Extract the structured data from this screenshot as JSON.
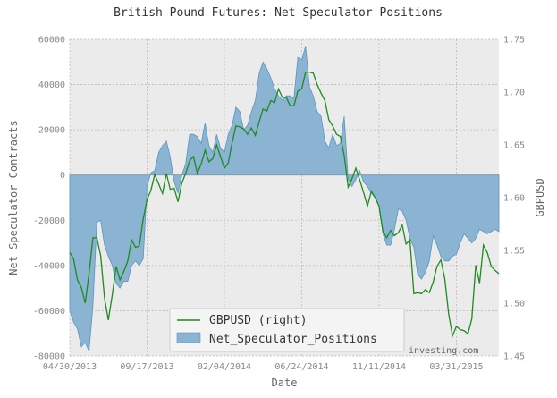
{
  "chart_data": {
    "type": "area",
    "title": "British Pound Futures: Net Speculator Positions",
    "xlabel": "Date",
    "ylabel": "Net Speculator Contracts",
    "ylabel_right": "GBPUSD",
    "x_tick_labels": [
      "04/30/2013",
      "09/17/2013",
      "02/04/2014",
      "06/24/2014",
      "11/11/2014",
      "03/31/2015"
    ],
    "x_tick_dates": [
      "2013-04-30",
      "2013-09-17",
      "2014-02-04",
      "2014-06-24",
      "2014-11-11",
      "2015-03-31"
    ],
    "x_range": [
      "2013-04-30",
      "2015-06-16"
    ],
    "ylim": [
      -80000,
      60000
    ],
    "y_ticks": [
      -80000,
      -60000,
      -40000,
      -20000,
      0,
      20000,
      40000,
      60000
    ],
    "ylim_right": [
      1.45,
      1.75
    ],
    "y_ticks_right": [
      1.45,
      1.5,
      1.55,
      1.6,
      1.65,
      1.7,
      1.75
    ],
    "grid": true,
    "legend_position": "bottom-center",
    "watermark": "investing.com",
    "colors": {
      "area": "#8ab4d1",
      "area_edge": "#5b95bf",
      "line": "#1f8a1f",
      "plot_bg": "#ebebeb",
      "grid": "#bbbbbb"
    },
    "series": [
      {
        "name": "Net_Speculator_Positions",
        "axis": "left",
        "kind": "area",
        "x": [
          "2013-04-30",
          "2013-05-07",
          "2013-05-14",
          "2013-05-21",
          "2013-05-28",
          "2013-06-04",
          "2013-06-11",
          "2013-06-18",
          "2013-06-25",
          "2013-07-02",
          "2013-07-09",
          "2013-07-16",
          "2013-07-23",
          "2013-07-30",
          "2013-08-06",
          "2013-08-13",
          "2013-08-20",
          "2013-08-27",
          "2013-09-03",
          "2013-09-10",
          "2013-09-17",
          "2013-09-24",
          "2013-10-01",
          "2013-10-08",
          "2013-10-15",
          "2013-10-22",
          "2013-10-29",
          "2013-11-05",
          "2013-11-12",
          "2013-11-19",
          "2013-11-26",
          "2013-12-03",
          "2013-12-10",
          "2013-12-17",
          "2013-12-24",
          "2013-12-31",
          "2014-01-07",
          "2014-01-14",
          "2014-01-21",
          "2014-01-28",
          "2014-02-04",
          "2014-02-11",
          "2014-02-18",
          "2014-02-25",
          "2014-03-04",
          "2014-03-11",
          "2014-03-18",
          "2014-03-25",
          "2014-04-01",
          "2014-04-08",
          "2014-04-15",
          "2014-04-22",
          "2014-04-29",
          "2014-05-06",
          "2014-05-13",
          "2014-05-20",
          "2014-05-27",
          "2014-06-03",
          "2014-06-10",
          "2014-06-17",
          "2014-06-24",
          "2014-07-01",
          "2014-07-08",
          "2014-07-15",
          "2014-07-22",
          "2014-07-29",
          "2014-08-05",
          "2014-08-12",
          "2014-08-19",
          "2014-08-26",
          "2014-09-02",
          "2014-09-09",
          "2014-09-16",
          "2014-09-23",
          "2014-09-30",
          "2014-10-07",
          "2014-10-14",
          "2014-10-21",
          "2014-10-28",
          "2014-11-04",
          "2014-11-11",
          "2014-11-18",
          "2014-11-25",
          "2014-12-02",
          "2014-12-09",
          "2014-12-16",
          "2014-12-23",
          "2014-12-30",
          "2015-01-06",
          "2015-01-13",
          "2015-01-20",
          "2015-01-27",
          "2015-02-03",
          "2015-02-10",
          "2015-02-17",
          "2015-02-24",
          "2015-03-03",
          "2015-03-10",
          "2015-03-17",
          "2015-03-24",
          "2015-03-31",
          "2015-04-07",
          "2015-04-14",
          "2015-04-21",
          "2015-04-28",
          "2015-05-05",
          "2015-05-12",
          "2015-05-19",
          "2015-05-26",
          "2015-06-02",
          "2015-06-09",
          "2015-06-16"
        ],
        "values": [
          -60000,
          -65000,
          -68000,
          -76000,
          -74000,
          -78000,
          -58000,
          -21000,
          -20000,
          -31000,
          -36000,
          -40000,
          -48000,
          -50000,
          -47000,
          -47000,
          -40000,
          -38000,
          -40000,
          -37000,
          -5000,
          1000,
          2000,
          10000,
          13000,
          15000,
          8000,
          -3000,
          -8000,
          0,
          5000,
          18000,
          18000,
          17000,
          14000,
          23000,
          13000,
          10000,
          18000,
          12000,
          10000,
          18000,
          22000,
          30000,
          28000,
          20000,
          22000,
          28000,
          33000,
          45000,
          50000,
          47000,
          43000,
          38000,
          35000,
          33000,
          35000,
          35000,
          34000,
          52000,
          51000,
          57000,
          39000,
          35000,
          28000,
          26000,
          15000,
          12000,
          18000,
          13000,
          14000,
          26000,
          -2000,
          -5000,
          -2000,
          2000,
          -3000,
          -5000,
          -8000,
          -10000,
          -14000,
          -26000,
          -31000,
          -31000,
          -24000,
          -15000,
          -16000,
          -20000,
          -28000,
          -32000,
          -44000,
          -46000,
          -43000,
          -38000,
          -27000,
          -31000,
          -36000,
          -38000,
          -38000,
          -36000,
          -35000,
          -30000,
          -26000,
          -28000,
          -30000,
          -28000,
          -24000,
          -25000,
          -26000,
          -25000,
          -24000,
          -25000
        ]
      },
      {
        "name": "GBPUSD (right)",
        "axis": "right",
        "kind": "line",
        "x": [
          "2013-04-30",
          "2013-05-07",
          "2013-05-14",
          "2013-05-21",
          "2013-05-28",
          "2013-06-04",
          "2013-06-11",
          "2013-06-18",
          "2013-06-25",
          "2013-07-02",
          "2013-07-09",
          "2013-07-16",
          "2013-07-23",
          "2013-07-30",
          "2013-08-06",
          "2013-08-13",
          "2013-08-20",
          "2013-08-27",
          "2013-09-03",
          "2013-09-10",
          "2013-09-17",
          "2013-09-24",
          "2013-10-01",
          "2013-10-08",
          "2013-10-15",
          "2013-10-22",
          "2013-10-29",
          "2013-11-05",
          "2013-11-12",
          "2013-11-19",
          "2013-11-26",
          "2013-12-03",
          "2013-12-10",
          "2013-12-17",
          "2013-12-24",
          "2013-12-31",
          "2014-01-07",
          "2014-01-14",
          "2014-01-21",
          "2014-01-28",
          "2014-02-04",
          "2014-02-11",
          "2014-02-18",
          "2014-02-25",
          "2014-03-04",
          "2014-03-11",
          "2014-03-18",
          "2014-03-25",
          "2014-04-01",
          "2014-04-08",
          "2014-04-15",
          "2014-04-22",
          "2014-04-29",
          "2014-05-06",
          "2014-05-13",
          "2014-05-20",
          "2014-05-27",
          "2014-06-03",
          "2014-06-10",
          "2014-06-17",
          "2014-06-24",
          "2014-07-01",
          "2014-07-08",
          "2014-07-15",
          "2014-07-22",
          "2014-07-29",
          "2014-08-05",
          "2014-08-12",
          "2014-08-19",
          "2014-08-26",
          "2014-09-02",
          "2014-09-09",
          "2014-09-16",
          "2014-09-23",
          "2014-09-30",
          "2014-10-07",
          "2014-10-14",
          "2014-10-21",
          "2014-10-28",
          "2014-11-04",
          "2014-11-11",
          "2014-11-18",
          "2014-11-25",
          "2014-12-02",
          "2014-12-09",
          "2014-12-16",
          "2014-12-23",
          "2014-12-30",
          "2015-01-06",
          "2015-01-13",
          "2015-01-20",
          "2015-01-27",
          "2015-02-03",
          "2015-02-10",
          "2015-02-17",
          "2015-02-24",
          "2015-03-03",
          "2015-03-10",
          "2015-03-17",
          "2015-03-24",
          "2015-03-31",
          "2015-04-07",
          "2015-04-14",
          "2015-04-21",
          "2015-04-28",
          "2015-05-05",
          "2015-05-12",
          "2015-05-19",
          "2015-05-26",
          "2015-06-02",
          "2015-06-09",
          "2015-06-16"
        ],
        "values": [
          1.548,
          1.542,
          1.522,
          1.515,
          1.5,
          1.528,
          1.562,
          1.562,
          1.545,
          1.505,
          1.484,
          1.508,
          1.535,
          1.522,
          1.53,
          1.54,
          1.56,
          1.553,
          1.554,
          1.58,
          1.598,
          1.607,
          1.622,
          1.613,
          1.604,
          1.623,
          1.608,
          1.609,
          1.596,
          1.614,
          1.623,
          1.635,
          1.639,
          1.623,
          1.632,
          1.645,
          1.634,
          1.637,
          1.65,
          1.639,
          1.628,
          1.633,
          1.652,
          1.668,
          1.667,
          1.665,
          1.66,
          1.666,
          1.659,
          1.672,
          1.684,
          1.682,
          1.692,
          1.69,
          1.703,
          1.695,
          1.695,
          1.687,
          1.687,
          1.701,
          1.703,
          1.719,
          1.719,
          1.718,
          1.707,
          1.699,
          1.692,
          1.674,
          1.668,
          1.66,
          1.658,
          1.64,
          1.61,
          1.618,
          1.628,
          1.617,
          1.605,
          1.592,
          1.606,
          1.6,
          1.592,
          1.568,
          1.562,
          1.569,
          1.564,
          1.567,
          1.574,
          1.556,
          1.56,
          1.509,
          1.51,
          1.509,
          1.513,
          1.51,
          1.52,
          1.535,
          1.541,
          1.523,
          1.49,
          1.469,
          1.478,
          1.475,
          1.474,
          1.471,
          1.485,
          1.536,
          1.519,
          1.555,
          1.548,
          1.535,
          1.531,
          1.528
        ]
      }
    ]
  }
}
